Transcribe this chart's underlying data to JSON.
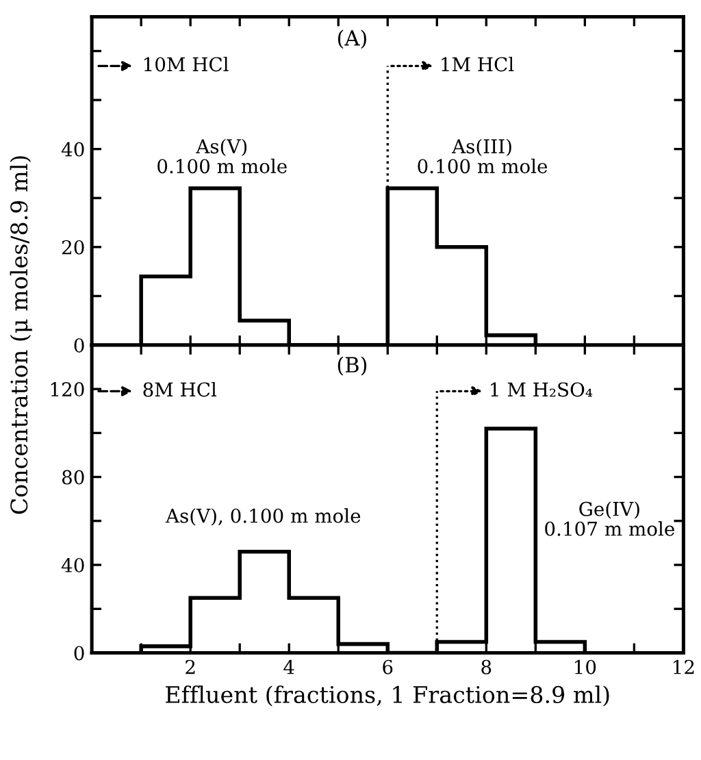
{
  "chart_data": [
    {
      "type": "histogram",
      "title": "(A)",
      "ylabel": "Concentration (μ moles/8.9 ml)",
      "bins": [
        1,
        2,
        3,
        4,
        5,
        6,
        7,
        8,
        9
      ],
      "values": [
        14,
        32,
        5,
        0,
        0,
        32,
        20,
        2
      ],
      "color": "#000000",
      "xlim": [
        0,
        12
      ],
      "xticks": [
        {
          "value": 1,
          "label": null
        },
        {
          "value": 2,
          "label": null
        },
        {
          "value": 3,
          "label": null
        },
        {
          "value": 4,
          "label": null
        },
        {
          "value": 5,
          "label": null
        },
        {
          "value": 6,
          "label": null
        },
        {
          "value": 7,
          "label": null
        },
        {
          "value": 8,
          "label": null
        },
        {
          "value": 9,
          "label": null
        },
        {
          "value": 10,
          "label": null
        },
        {
          "value": 11,
          "label": null
        }
      ],
      "ylim": [
        0,
        67
      ],
      "yticks": [
        0,
        {
          "value": 10,
          "label": null
        },
        20,
        {
          "value": 30,
          "label": null
        },
        40,
        {
          "value": 50,
          "label": null
        },
        {
          "value": 60,
          "label": null
        }
      ],
      "tick_labels": "y",
      "ref_lines": [
        {
          "axis": "x",
          "value": 6,
          "label": "1M HCl",
          "line_style": "dotted"
        }
      ],
      "annotations": [
        "10M HCl",
        "As(V)\n0.100 m mole",
        "As(III)\n0.100 m mole"
      ]
    },
    {
      "type": "histogram",
      "title": "(B)",
      "xlabel": "Effluent (fractions, 1 Fraction=8.9 ml)",
      "bins": [
        1,
        2,
        3,
        4,
        5,
        6,
        7,
        8,
        9,
        10
      ],
      "values": [
        3,
        25,
        46,
        25,
        4,
        0,
        5,
        102,
        5
      ],
      "color": "#000000",
      "xlim": [
        0,
        12
      ],
      "xticks": [
        {
          "value": 1,
          "label": null
        },
        2,
        {
          "value": 3,
          "label": null
        },
        4,
        {
          "value": 5,
          "label": null
        },
        6,
        {
          "value": 7,
          "label": null
        },
        8,
        {
          "value": 9,
          "label": null
        },
        10,
        {
          "value": 11,
          "label": null
        },
        12
      ],
      "ylim": [
        0,
        140
      ],
      "yticks": [
        0,
        {
          "value": 20,
          "label": null
        },
        40,
        {
          "value": 60,
          "label": null
        },
        80,
        {
          "value": 100,
          "label": null
        },
        120
      ],
      "ref_lines": [
        {
          "axis": "x",
          "value": 7,
          "label": "1 M H₂SO₄",
          "line_style": "dotted"
        }
      ],
      "annotations": [
        "8M HCl",
        "As(V), 0.100 m mole",
        "Ge(IV)\n0.107 m mole"
      ]
    }
  ]
}
